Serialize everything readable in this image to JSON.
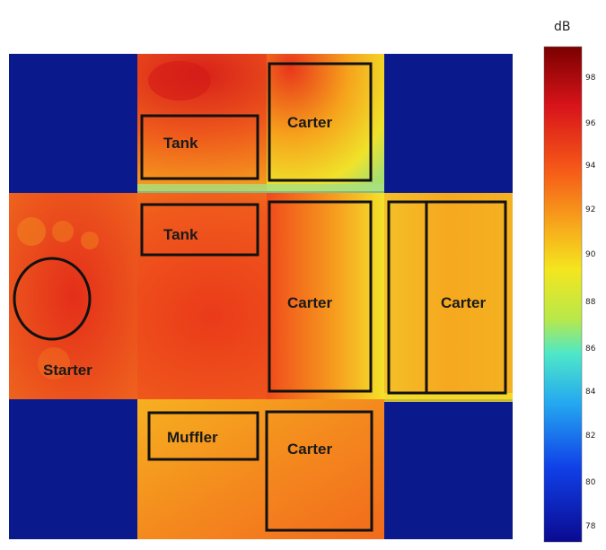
{
  "colorbar": {
    "unit": "dB",
    "ticks": [
      "98",
      "96",
      "94",
      "92",
      "90",
      "88",
      "86",
      "84",
      "82",
      "80",
      "78"
    ]
  },
  "labels": {
    "tank_top": "Tank",
    "carter_top": "Carter",
    "tank_middle": "Tank",
    "carter_center": "Carter",
    "carter_right": "Carter",
    "starter": "Starter",
    "muffler": "Muffler",
    "carter_bottom": "Carter"
  },
  "colors": {
    "background_blue": "#0a1a8c",
    "hot": "#e8301c",
    "warm": "#f58a1c",
    "mid": "#f4e21e"
  }
}
